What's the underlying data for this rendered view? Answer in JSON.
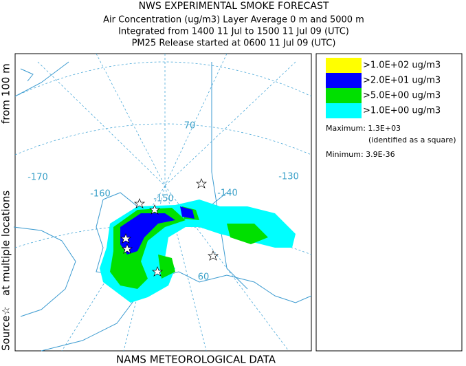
{
  "header": {
    "title": "NWS EXPERIMENTAL SMOKE FORECAST",
    "lines": [
      "Air Concentration (ug/m3) Layer Average    0 m and  5000 m",
      "Integrated from 1400 11 Jul to 1500 11 Jul 09 (UTC)",
      "PM25 Release started at 0600 11 Jul 09 (UTC)"
    ]
  },
  "side_label": {
    "source": "Source☆",
    "locations": "at multiple locations",
    "from": "from   100 m"
  },
  "map": {
    "longitude_labels": [
      "-170",
      "-160",
      "-150",
      "-140",
      "-130"
    ],
    "latitude_labels": [
      "70",
      "60"
    ]
  },
  "legend": {
    "items": [
      {
        "label": ">1.0E+02 ug/m3",
        "color": "#ffff00"
      },
      {
        "label": ">2.0E+01 ug/m3",
        "color": "#0000ff"
      },
      {
        "label": ">5.0E+00 ug/m3",
        "color": "#00e000"
      },
      {
        "label": ">1.0E+00 ug/m3",
        "color": "#00ffff"
      }
    ],
    "maximum": "Maximum: 1.3E+03",
    "maximum_note": "(identified as a square)",
    "minimum": "Minimum: 3.9E-36"
  },
  "footer": "NAMS METEOROLOGICAL DATA"
}
